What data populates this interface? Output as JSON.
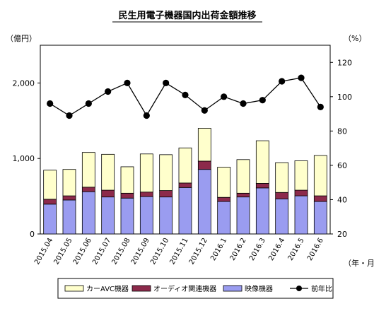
{
  "chart_data": {
    "type": "bar",
    "title": "民生用電子機器国内出荷金額推移",
    "ylabel_left": "（億円）",
    "ylabel_right": "（%）",
    "xlabel": "（年・月）",
    "categories": [
      "2015.04",
      "2015.05",
      "2015.06",
      "2015.07",
      "2015.08",
      "2015.09",
      "2015.10",
      "2015.11",
      "2015.12",
      "2016.1",
      "2016.2",
      "2016.3",
      "2016.4",
      "2016.5",
      "2016.6"
    ],
    "ylim_left": [
      0,
      2500
    ],
    "yticks_left": [
      0,
      1000,
      2000
    ],
    "ytick_labels_left": [
      "0",
      "1,000",
      "2,000"
    ],
    "ylim_right": [
      20,
      130
    ],
    "yticks_right": [
      20,
      40,
      60,
      80,
      100,
      120
    ],
    "grid": false,
    "legend_position": "bottom",
    "series": [
      {
        "name": "映像機器",
        "kind": "bar",
        "stack": 0,
        "color": "#9a9cf0",
        "values": [
          395,
          450,
          560,
          490,
          475,
          495,
          490,
          615,
          855,
          430,
          490,
          610,
          465,
          505,
          430
        ]
      },
      {
        "name": "オーディオ関連機器",
        "kind": "bar",
        "stack": 1,
        "color": "#8c2a4b",
        "values": [
          65,
          55,
          60,
          90,
          65,
          60,
          85,
          60,
          110,
          55,
          50,
          60,
          85,
          75,
          75
        ]
      },
      {
        "name": "カーAVC機器",
        "kind": "bar",
        "stack": 2,
        "color": "#ffffcc",
        "values": [
          385,
          350,
          460,
          475,
          350,
          505,
          475,
          465,
          435,
          400,
          445,
          565,
          395,
          390,
          535
        ]
      },
      {
        "name": "前年比",
        "kind": "line",
        "axis": "right",
        "color": "#000000",
        "values": [
          96,
          89,
          96,
          103,
          108,
          89,
          108,
          101,
          92,
          100,
          96,
          98,
          109,
          111,
          94
        ]
      }
    ]
  }
}
